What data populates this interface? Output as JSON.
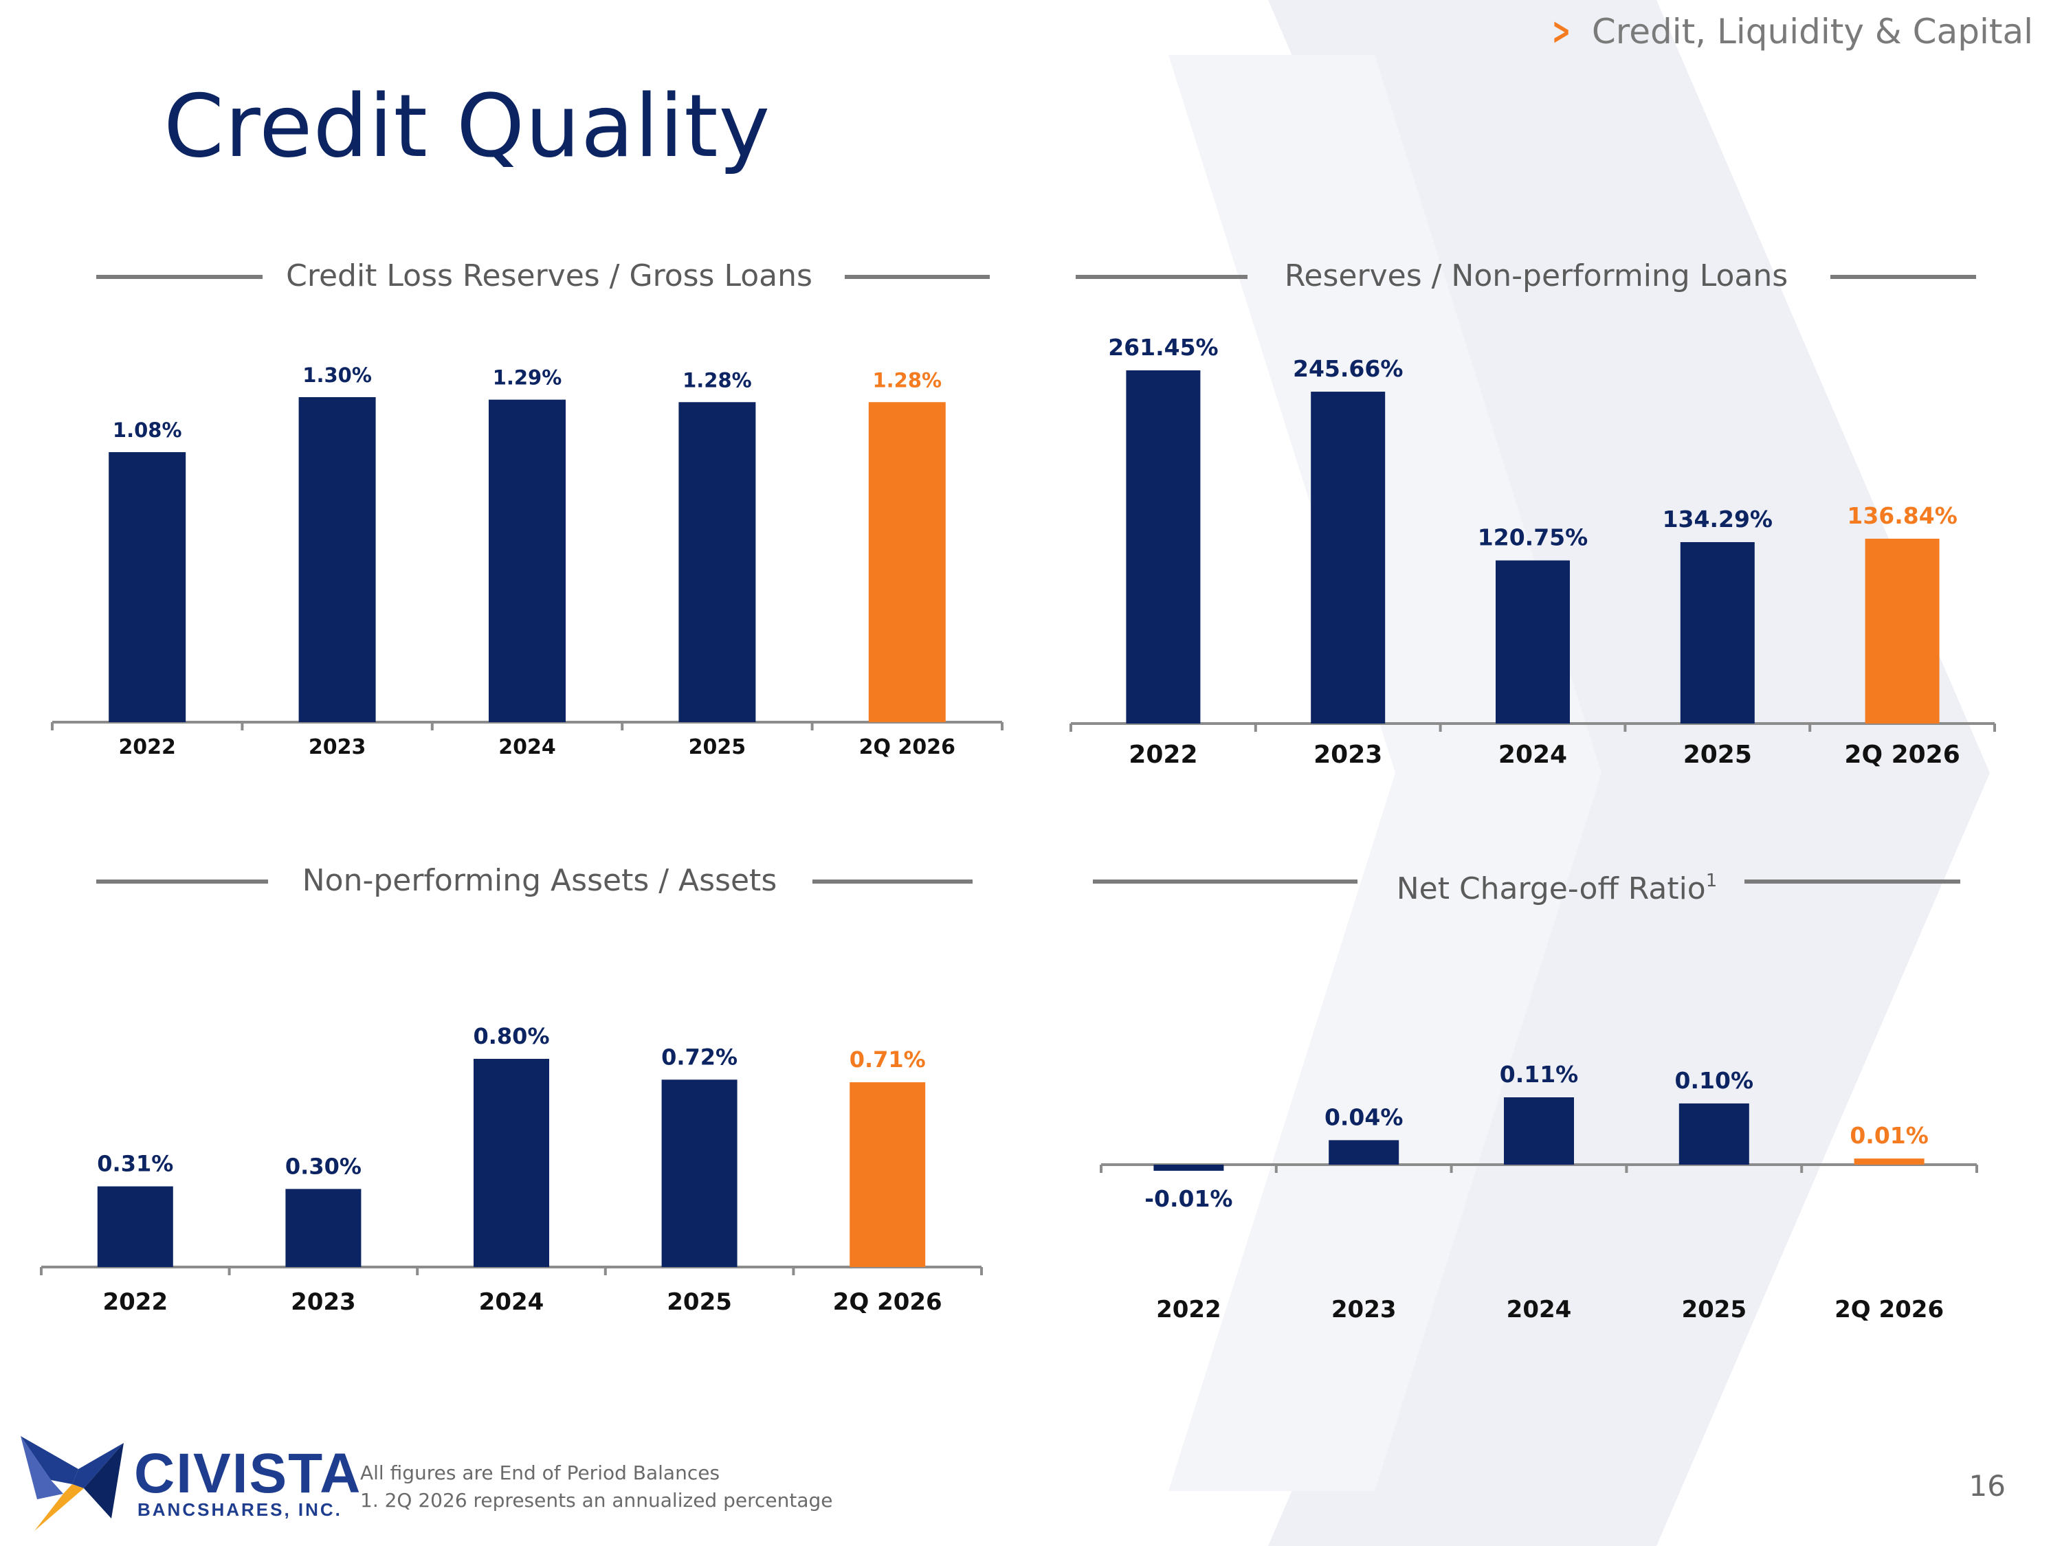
{
  "slide": {
    "section": "Credit, Liquidity & Capital",
    "title": "Credit Quality",
    "page_number": "16"
  },
  "logo": {
    "name": "CIVISTA",
    "subtitle": "BANCSHARES, INC."
  },
  "footnotes": [
    "All figures are End of Period Balances",
    "1. 2Q 2026 represents an annualized percentage"
  ],
  "colors": {
    "navy": "#0c2461",
    "orange": "#f47b20",
    "axis": "#8c8c8c",
    "header_rule": "#7b7b7b",
    "watermark": "#eef0f5"
  },
  "chart_data": [
    {
      "id": "credit-loss-reserves",
      "type": "bar",
      "title": "Credit Loss Reserves / Gross Loans",
      "title_superscript": "",
      "categories": [
        "2022",
        "2023",
        "2024",
        "2025",
        "2Q 2026"
      ],
      "values": [
        1.08,
        1.3,
        1.29,
        1.28,
        1.28
      ],
      "labels": [
        "1.08%",
        "1.30%",
        "1.29%",
        "1.28%",
        "1.28%"
      ],
      "highlight_index": 4,
      "ylim": [
        0,
        1.3
      ]
    },
    {
      "id": "reserves-npl",
      "type": "bar",
      "title": "Reserves / Non-performing Loans",
      "title_superscript": "",
      "categories": [
        "2022",
        "2023",
        "2024",
        "2025",
        "2Q 2026"
      ],
      "values": [
        261.45,
        245.66,
        120.75,
        134.29,
        136.84
      ],
      "labels": [
        "261.45%",
        "245.66%",
        "120.75%",
        "134.29%",
        "136.84%"
      ],
      "highlight_index": 4,
      "ylim": [
        0,
        261.45
      ]
    },
    {
      "id": "npa-assets",
      "type": "bar",
      "title": "Non-performing Assets / Assets",
      "title_superscript": "",
      "categories": [
        "2022",
        "2023",
        "2024",
        "2025",
        "2Q 2026"
      ],
      "values": [
        0.31,
        0.3,
        0.8,
        0.72,
        0.71
      ],
      "labels": [
        "0.31%",
        "0.30%",
        "0.80%",
        "0.72%",
        "0.71%"
      ],
      "highlight_index": 4,
      "ylim": [
        0,
        0.8
      ]
    },
    {
      "id": "net-chargeoff",
      "type": "bar",
      "title": "Net Charge-off Ratio",
      "title_superscript": "1",
      "categories": [
        "2022",
        "2023",
        "2024",
        "2025",
        "2Q 2026"
      ],
      "values": [
        -0.01,
        0.04,
        0.11,
        0.1,
        0.01
      ],
      "labels": [
        "-0.01%",
        "0.04%",
        "0.11%",
        "0.10%",
        "0.01%"
      ],
      "highlight_index": 4,
      "ylim": [
        -0.01,
        0.11
      ]
    }
  ]
}
